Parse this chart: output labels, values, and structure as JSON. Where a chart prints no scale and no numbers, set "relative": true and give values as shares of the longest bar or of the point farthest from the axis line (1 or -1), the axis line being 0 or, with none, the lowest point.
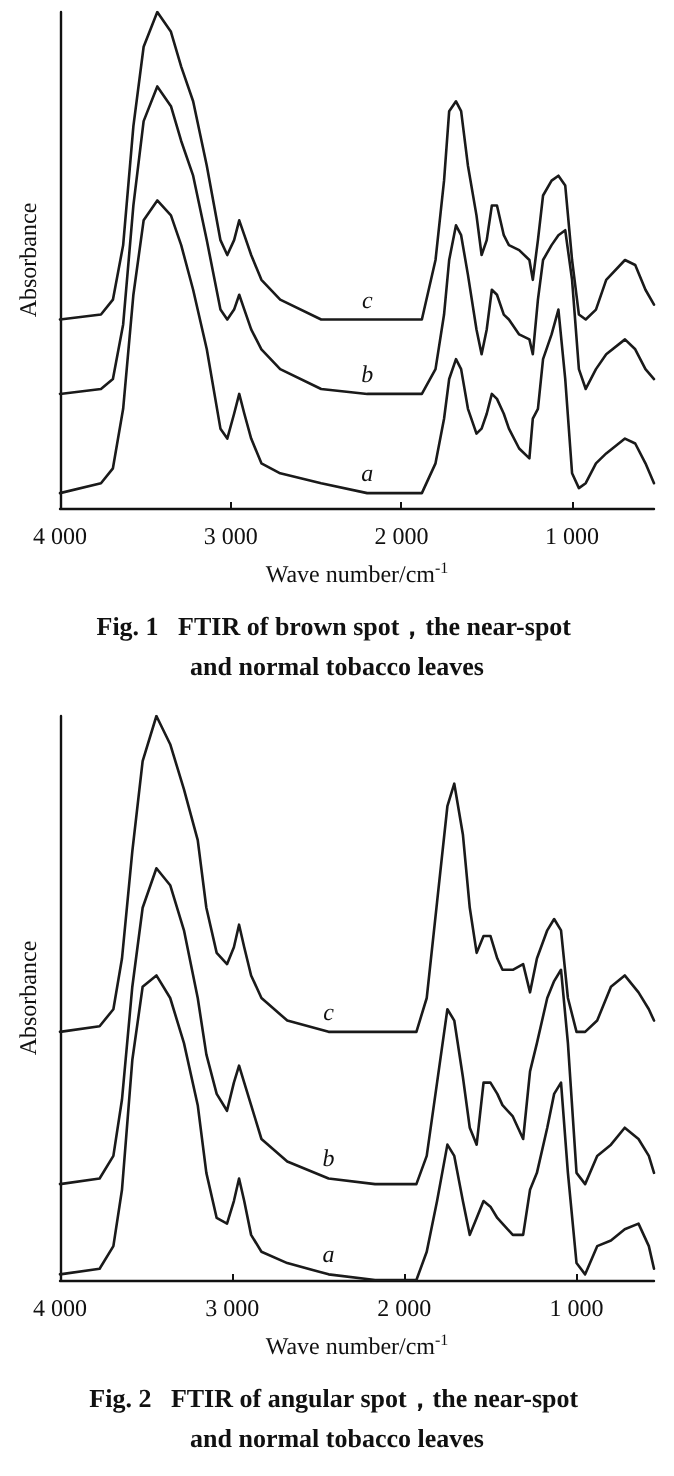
{
  "chart_data": [
    {
      "type": "line",
      "relative": true,
      "title": "Fig. 1   FTIR of brown spot，the near-spot and normal tobacco leaves",
      "xlabel": "Wave number/cm$^{-1}$",
      "ylabel": "Absorbance",
      "xlim": [
        4000,
        520
      ],
      "xticks": [
        {
          "value": 4000,
          "label": "4 000"
        },
        {
          "value": 3000,
          "label": "3 000"
        },
        {
          "value": 2000,
          "label": "2 000"
        },
        {
          "value": 1000,
          "label": "1 000"
        }
      ],
      "legend": false,
      "grid": false,
      "x": [
        4000,
        3760,
        3690,
        3630,
        3570,
        3510,
        3430,
        3350,
        3290,
        3220,
        3140,
        3060,
        3020,
        2980,
        2950,
        2920,
        2880,
        2820,
        2710,
        2470,
        2200,
        1880,
        1800,
        1750,
        1720,
        1680,
        1650,
        1610,
        1560,
        1530,
        1500,
        1470,
        1440,
        1400,
        1370,
        1310,
        1250,
        1230,
        1200,
        1170,
        1120,
        1080,
        1040,
        1000,
        960,
        920,
        860,
        800,
        690,
        630,
        570,
        520
      ],
      "series": [
        {
          "name": "c",
          "color": "#1a1a1a",
          "values": [
            0.38,
            0.39,
            0.42,
            0.53,
            0.77,
            0.93,
            1,
            0.96,
            0.89,
            0.82,
            0.69,
            0.54,
            0.51,
            0.54,
            0.58,
            0.55,
            0.51,
            0.46,
            0.42,
            0.38,
            0.38,
            0.38,
            0.5,
            0.66,
            0.8,
            0.82,
            0.8,
            0.69,
            0.59,
            0.51,
            0.54,
            0.61,
            0.61,
            0.55,
            0.53,
            0.52,
            0.5,
            0.46,
            0.54,
            0.63,
            0.66,
            0.67,
            0.65,
            0.5,
            0.39,
            0.38,
            0.4,
            0.46,
            0.5,
            0.49,
            0.44,
            0.41
          ]
        },
        {
          "name": "b",
          "color": "#1a1a1a",
          "values": [
            0.23,
            0.24,
            0.26,
            0.37,
            0.61,
            0.78,
            0.85,
            0.81,
            0.74,
            0.67,
            0.54,
            0.4,
            0.38,
            0.4,
            0.43,
            0.4,
            0.36,
            0.32,
            0.28,
            0.24,
            0.23,
            0.23,
            0.28,
            0.39,
            0.5,
            0.57,
            0.55,
            0.47,
            0.36,
            0.31,
            0.36,
            0.44,
            0.43,
            0.39,
            0.38,
            0.35,
            0.34,
            0.31,
            0.42,
            0.5,
            0.53,
            0.55,
            0.56,
            0.46,
            0.28,
            0.24,
            0.28,
            0.31,
            0.34,
            0.32,
            0.28,
            0.26
          ]
        },
        {
          "name": "a",
          "color": "#1a1a1a",
          "values": [
            0.03,
            0.05,
            0.08,
            0.2,
            0.43,
            0.58,
            0.62,
            0.59,
            0.53,
            0.44,
            0.32,
            0.16,
            0.14,
            0.19,
            0.23,
            0.19,
            0.14,
            0.09,
            0.07,
            0.05,
            0.03,
            0.03,
            0.09,
            0.18,
            0.26,
            0.3,
            0.28,
            0.2,
            0.15,
            0.16,
            0.19,
            0.23,
            0.22,
            0.19,
            0.16,
            0.12,
            0.1,
            0.18,
            0.2,
            0.3,
            0.35,
            0.4,
            0.26,
            0.07,
            0.04,
            0.05,
            0.09,
            0.11,
            0.14,
            0.13,
            0.09,
            0.05
          ]
        }
      ]
    },
    {
      "type": "line",
      "relative": true,
      "title": "Fig. 2   FTIR of angular spot，the near-spot and normal tobacco leaves",
      "xlabel": "Wave number/cm$^{-1}$",
      "ylabel": "Absorbance",
      "xlim": [
        4000,
        550
      ],
      "xticks": [
        {
          "value": 4000,
          "label": "4 000"
        },
        {
          "value": 3000,
          "label": "3 000"
        },
        {
          "value": 2000,
          "label": "2 000"
        },
        {
          "value": 1000,
          "label": "1 000"
        }
      ],
      "legend": false,
      "grid": false,
      "x": [
        4000,
        3770,
        3690,
        3640,
        3580,
        3520,
        3440,
        3360,
        3280,
        3200,
        3150,
        3090,
        3030,
        2990,
        2960,
        2930,
        2890,
        2830,
        2680,
        2440,
        2170,
        1930,
        1870,
        1810,
        1750,
        1710,
        1660,
        1620,
        1580,
        1540,
        1500,
        1460,
        1430,
        1370,
        1310,
        1270,
        1230,
        1170,
        1130,
        1090,
        1050,
        1000,
        950,
        880,
        800,
        720,
        640,
        580,
        550
      ],
      "series": [
        {
          "name": "c",
          "color": "#1a1a1a",
          "values": [
            0.44,
            0.45,
            0.48,
            0.57,
            0.76,
            0.92,
            1,
            0.95,
            0.87,
            0.78,
            0.66,
            0.58,
            0.56,
            0.59,
            0.63,
            0.59,
            0.54,
            0.5,
            0.46,
            0.44,
            0.44,
            0.44,
            0.5,
            0.67,
            0.84,
            0.88,
            0.79,
            0.66,
            0.58,
            0.61,
            0.61,
            0.57,
            0.55,
            0.55,
            0.56,
            0.51,
            0.57,
            0.62,
            0.64,
            0.62,
            0.5,
            0.44,
            0.44,
            0.46,
            0.52,
            0.54,
            0.51,
            0.48,
            0.46
          ]
        },
        {
          "name": "b",
          "color": "#1a1a1a",
          "values": [
            0.17,
            0.18,
            0.22,
            0.32,
            0.52,
            0.66,
            0.73,
            0.7,
            0.62,
            0.5,
            0.4,
            0.33,
            0.3,
            0.35,
            0.38,
            0.35,
            0.31,
            0.25,
            0.21,
            0.18,
            0.17,
            0.17,
            0.22,
            0.35,
            0.48,
            0.46,
            0.36,
            0.27,
            0.24,
            0.35,
            0.35,
            0.33,
            0.31,
            0.29,
            0.25,
            0.37,
            0.42,
            0.5,
            0.53,
            0.55,
            0.42,
            0.19,
            0.17,
            0.22,
            0.24,
            0.27,
            0.25,
            0.22,
            0.19
          ]
        },
        {
          "name": "a",
          "color": "#1a1a1a",
          "values": [
            0.01,
            0.02,
            0.06,
            0.16,
            0.39,
            0.52,
            0.54,
            0.5,
            0.42,
            0.31,
            0.19,
            0.11,
            0.1,
            0.14,
            0.18,
            0.14,
            0.08,
            0.05,
            0.03,
            0.01,
            0,
            0,
            0.05,
            0.14,
            0.24,
            0.22,
            0.14,
            0.08,
            0.11,
            0.14,
            0.13,
            0.11,
            0.1,
            0.08,
            0.08,
            0.16,
            0.19,
            0.27,
            0.33,
            0.35,
            0.19,
            0.03,
            0.01,
            0.06,
            0.07,
            0.09,
            0.1,
            0.06,
            0.02
          ]
        }
      ]
    }
  ]
}
